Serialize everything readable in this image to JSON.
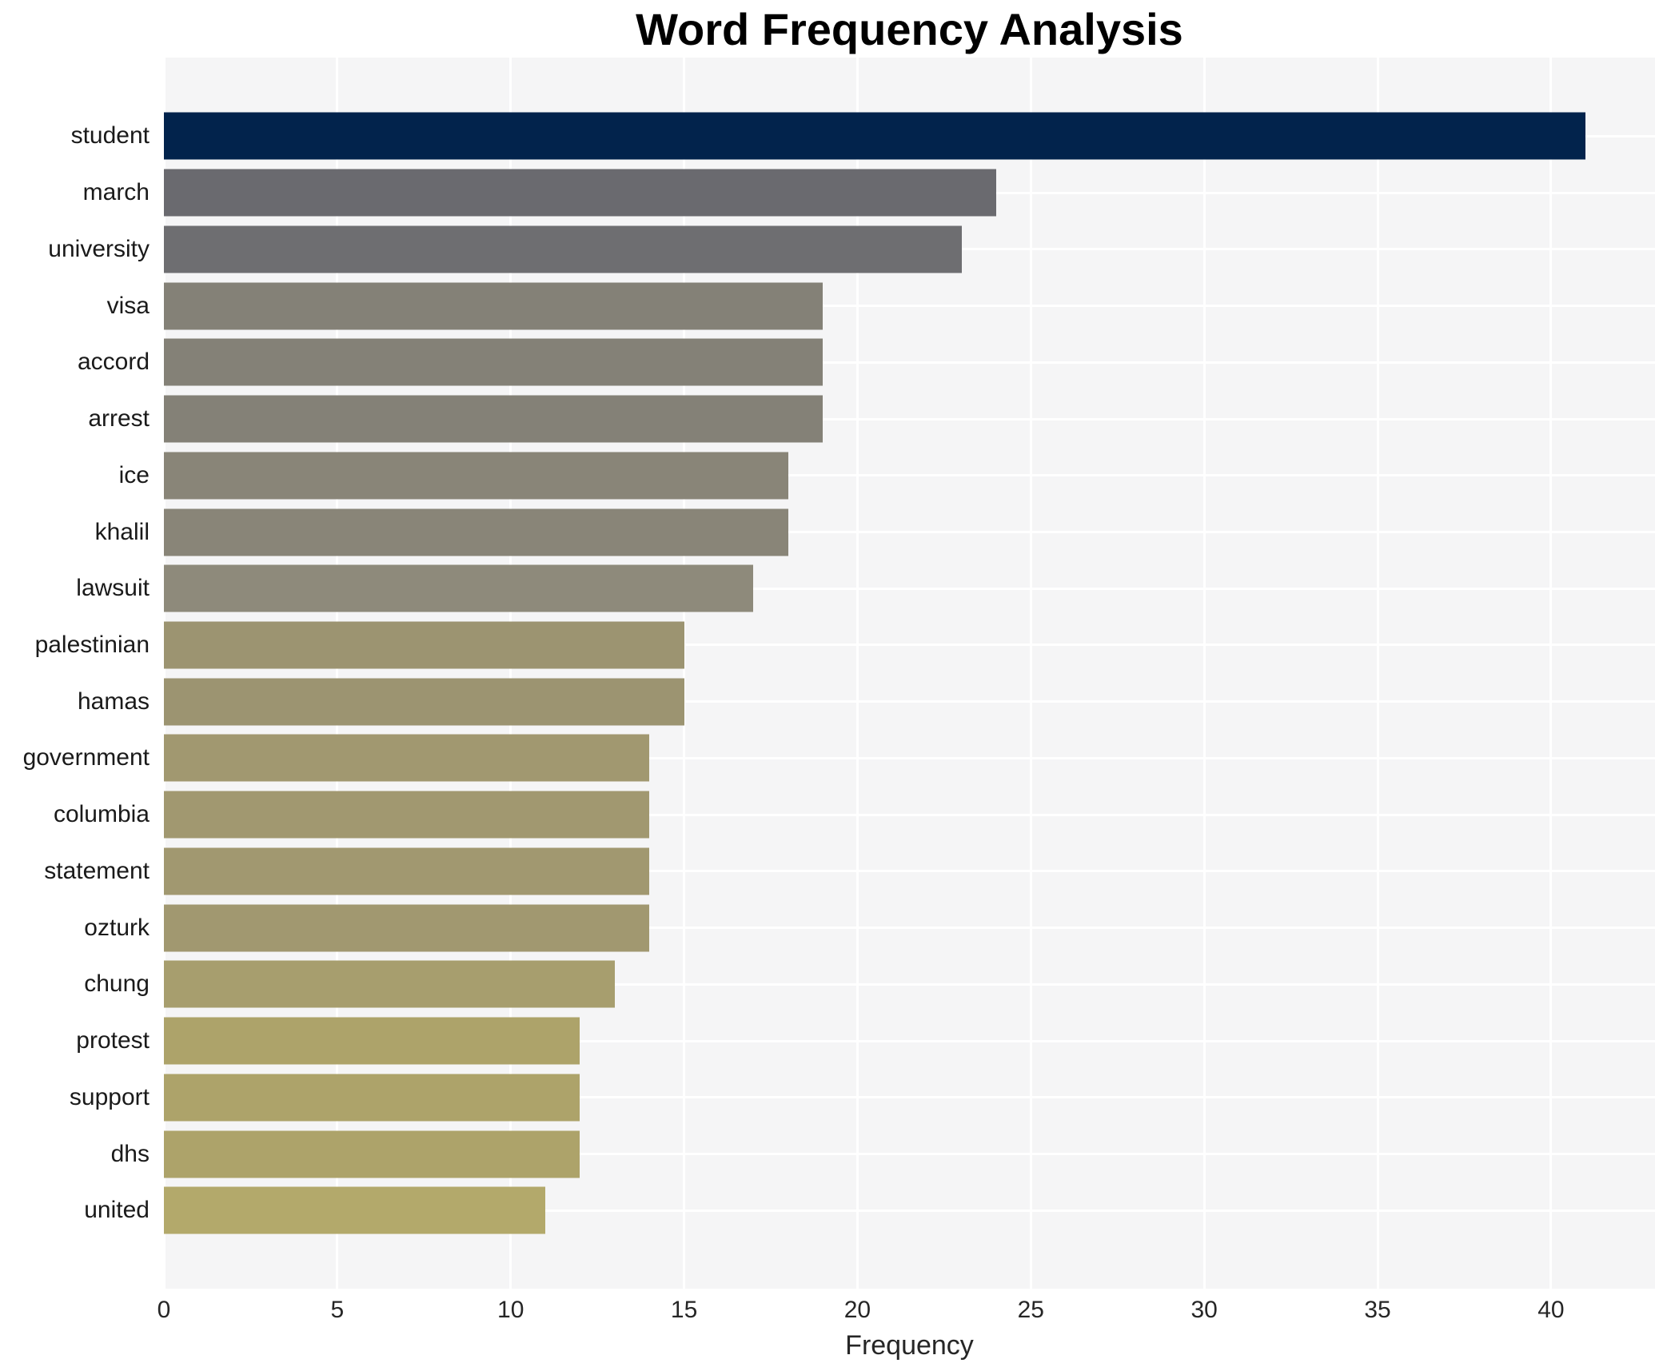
{
  "chart_data": {
    "type": "bar",
    "orientation": "horizontal",
    "title": "Word Frequency Analysis",
    "xlabel": "Frequency",
    "ylabel": "",
    "categories": [
      "student",
      "march",
      "university",
      "visa",
      "accord",
      "arrest",
      "ice",
      "khalil",
      "lawsuit",
      "palestinian",
      "hamas",
      "government",
      "columbia",
      "statement",
      "ozturk",
      "chung",
      "protest",
      "support",
      "dhs",
      "united"
    ],
    "values": [
      41,
      24,
      23,
      19,
      19,
      19,
      18,
      18,
      17,
      15,
      15,
      14,
      14,
      14,
      14,
      13,
      12,
      12,
      12,
      11
    ],
    "bar_colors": [
      "#02234c",
      "#6a6a6f",
      "#6e6e71",
      "#848177",
      "#848177",
      "#848177",
      "#898578",
      "#898578",
      "#8e8a7b",
      "#9c9471",
      "#9c9471",
      "#a19870",
      "#a19870",
      "#a19870",
      "#a19870",
      "#a79e6e",
      "#ada36a",
      "#ada36a",
      "#ada36a",
      "#b3a96b"
    ],
    "x_ticks": [
      0,
      5,
      10,
      15,
      20,
      25,
      30,
      35,
      40
    ],
    "xlim": [
      0,
      43
    ],
    "grid": true,
    "legend": false,
    "plot_background": "#f5f5f6",
    "grid_color": "#ffffff",
    "title_color": "#000000",
    "tick_label_color": "#262626",
    "category_label_color": "#1a1a1a"
  }
}
